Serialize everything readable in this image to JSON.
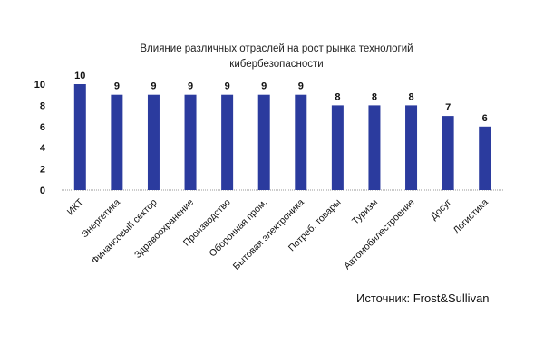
{
  "chart_data": {
    "type": "bar",
    "title_lines": [
      "Влияние различных отраслей на рост рынка технологий",
      "кибербезопасности"
    ],
    "categories": [
      "ИКТ",
      "Энергетика",
      "Финансовый сектор",
      "Здравоохранение",
      "Производство",
      "Оборонная пром.",
      "Бытовая электроника",
      "Потреб. товары",
      "Туризм",
      "Автомобилестроение",
      "Досуг",
      "Логистика"
    ],
    "values": [
      10,
      9,
      9,
      9,
      9,
      9,
      9,
      8,
      8,
      8,
      7,
      6
    ],
    "data_labels": [
      "10",
      "9",
      "9",
      "9",
      "9",
      "9",
      "9",
      "8",
      "8",
      "8",
      "7",
      "6"
    ],
    "y_ticks": [
      0,
      2,
      4,
      6,
      8,
      10
    ],
    "ylim": [
      0,
      10
    ],
    "grid": false,
    "legend": "none",
    "bar_color": "#2b3b9e",
    "xlabel": "",
    "ylabel": ""
  },
  "source": "Источник: Frost&Sullivan"
}
